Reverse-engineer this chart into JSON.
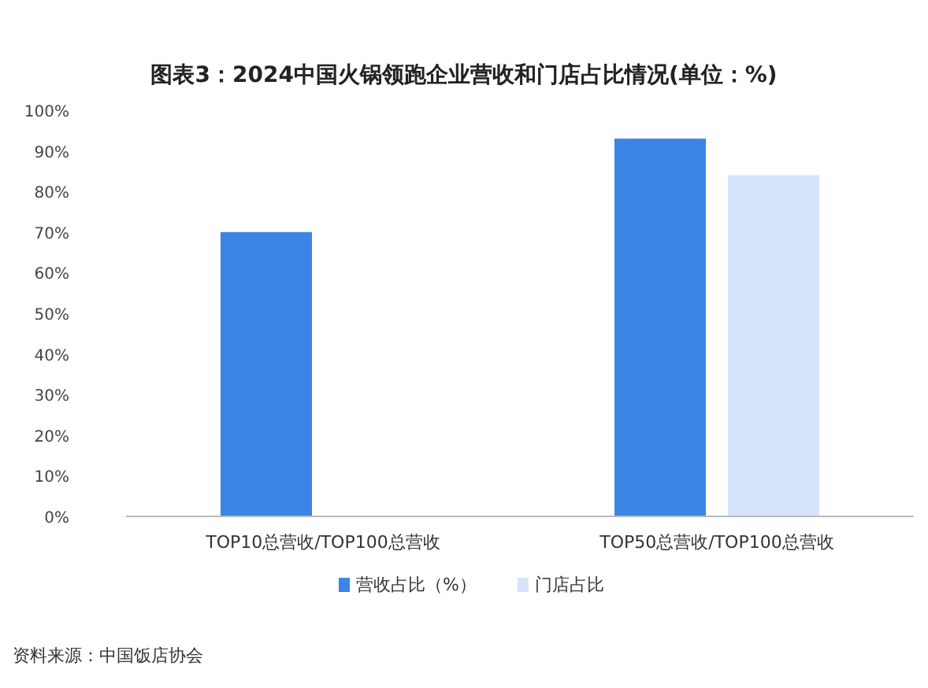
{
  "chart_data": {
    "type": "bar",
    "title": "图表3：2024中国火锅领跑企业营收和门店占比情况(单位：%)",
    "categories": [
      "TOP10总营收/TOP100总营收",
      "TOP50总营收/TOP100总营收"
    ],
    "series": [
      {
        "name": "营收占比（%）",
        "color": "#3a85e6",
        "values": [
          70,
          93
        ]
      },
      {
        "name": "门店占比",
        "color": "#d6e4fa",
        "values": [
          null,
          84
        ]
      }
    ],
    "ylim": [
      0,
      100
    ],
    "yticks": [
      {
        "value": 0,
        "label": "0%"
      },
      {
        "value": 10,
        "label": "10%"
      },
      {
        "value": 20,
        "label": "20%"
      },
      {
        "value": 30,
        "label": "30%"
      },
      {
        "value": 40,
        "label": "40%"
      },
      {
        "value": 50,
        "label": "50%"
      },
      {
        "value": 60,
        "label": "60%"
      },
      {
        "value": 70,
        "label": "70%"
      },
      {
        "value": 80,
        "label": "80%"
      },
      {
        "value": 90,
        "label": "90%"
      },
      {
        "value": 100,
        "label": "100%"
      }
    ],
    "grid": false,
    "legend": "bottom",
    "annotations": [
      "资料来源：中国饭店协会"
    ]
  }
}
